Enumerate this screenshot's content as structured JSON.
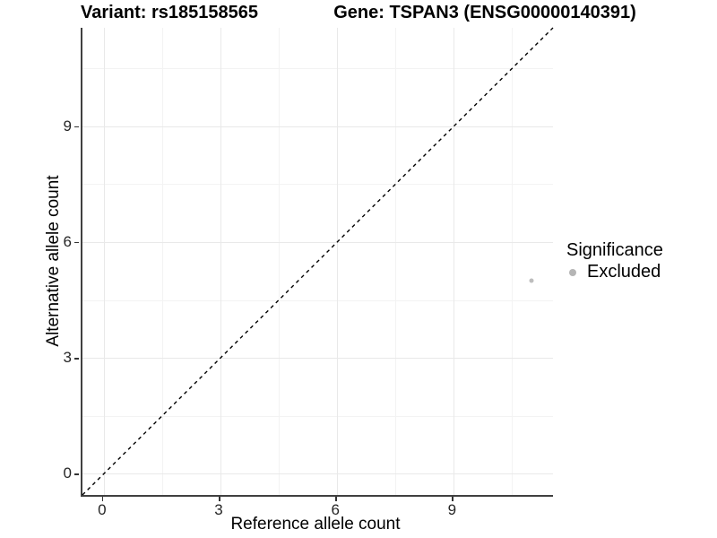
{
  "titles": {
    "variant": "Variant: rs185158565",
    "gene": "Gene: TSPAN3 (ENSG00000140391)"
  },
  "legend": {
    "title": "Significance",
    "items": [
      {
        "label": "Excluded",
        "color": "#b5b5b5"
      }
    ]
  },
  "chart_data": {
    "type": "scatter",
    "title": "Variant: rs185158565 / Gene: TSPAN3 (ENSG00000140391)",
    "xlabel": "Reference allele count",
    "ylabel": "Alternative allele count",
    "xlim": [
      -0.55,
      11.55
    ],
    "ylim": [
      -0.55,
      11.55
    ],
    "x_ticks": [
      0,
      3,
      6,
      9
    ],
    "y_ticks": [
      0,
      3,
      6,
      9
    ],
    "x_minor_ticks": [
      1.5,
      4.5,
      7.5,
      10.5
    ],
    "y_minor_ticks": [
      1.5,
      4.5,
      7.5,
      10.5
    ],
    "grid": true,
    "legend_position": "right",
    "series": [
      {
        "name": "Excluded",
        "color": "#bdbdbd",
        "point_radius": 2.5,
        "points": [
          {
            "x": 11,
            "y": 5
          }
        ]
      }
    ],
    "reference_line": {
      "name": "identity y=x",
      "style": "dashed",
      "color": "#000000",
      "from": [
        -0.55,
        -0.55
      ],
      "to": [
        11.55,
        11.55
      ]
    }
  },
  "colors": {
    "background": "#ffffff",
    "axis_line": "#404040",
    "grid_major": "#e9e9e9",
    "grid_minor": "#f3f3f3",
    "tick_text": "#262626",
    "point": "#bdbdbd"
  }
}
